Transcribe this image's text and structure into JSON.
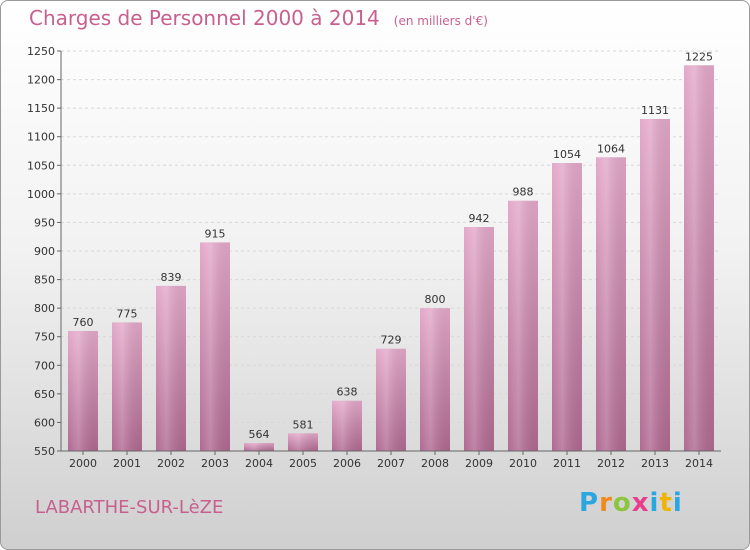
{
  "title": "Charges de Personnel 2000 à 2014",
  "unit_note": "(en milliers d'€)",
  "commune": "LABARTHE-SUR-LèZE",
  "logo_text": "Proxiti",
  "colors": {
    "bar": "#d99abd",
    "bar_dark": "#b0668f",
    "title": "#c8608f"
  },
  "chart_data": {
    "type": "bar",
    "title": "Charges de Personnel 2000 à 2014",
    "categories": [
      "2000",
      "2001",
      "2002",
      "2003",
      "2004",
      "2005",
      "2006",
      "2007",
      "2008",
      "2009",
      "2010",
      "2011",
      "2012",
      "2013",
      "2014"
    ],
    "values": [
      760,
      775,
      839,
      915,
      564,
      581,
      638,
      729,
      800,
      942,
      988,
      1054,
      1064,
      1131,
      1225
    ],
    "ylim": [
      550,
      1250
    ],
    "yticks": [
      550,
      600,
      650,
      700,
      750,
      800,
      850,
      900,
      950,
      1000,
      1050,
      1100,
      1150,
      1200,
      1250
    ],
    "grid": true,
    "xlabel": "",
    "ylabel": ""
  }
}
